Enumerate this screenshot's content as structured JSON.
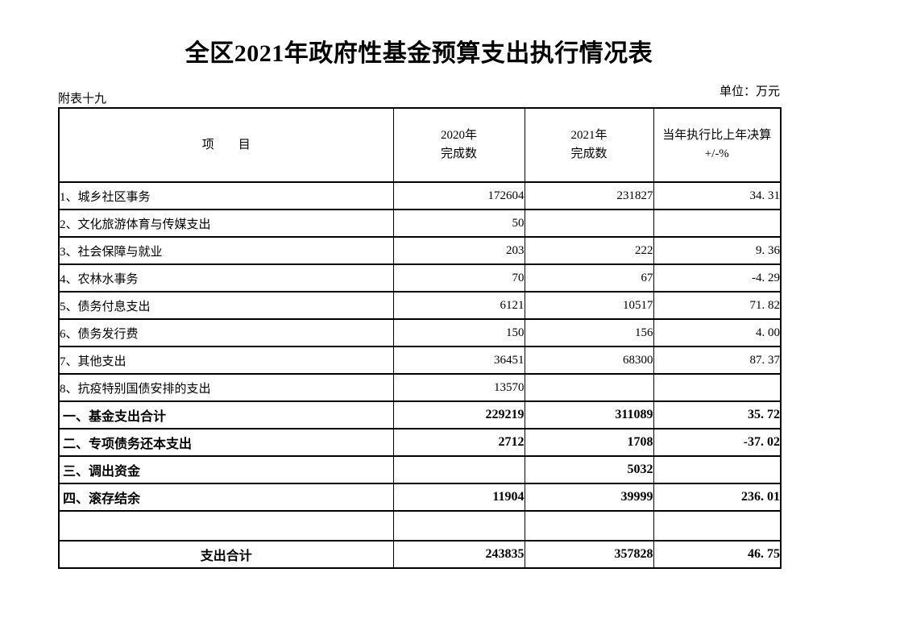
{
  "page": {
    "title": "全区2021年政府性基金预算支出执行情况表",
    "note_left": "附表十九",
    "unit_label": "单位：万元"
  },
  "table": {
    "header": {
      "item": "项　　目",
      "col_2020": [
        "2020年",
        "完成数"
      ],
      "col_2021": [
        "2021年",
        "完成数"
      ],
      "col_pct": [
        "当年执行比上年决算",
        "+/-%"
      ]
    },
    "rows": [
      {
        "style": "item",
        "label": "1、城乡社区事务",
        "v2020": "172604",
        "v2021": "231827",
        "pct": "34. 31"
      },
      {
        "style": "item",
        "label": "2、文化旅游体育与传媒支出",
        "v2020": "50",
        "v2021": "",
        "pct": ""
      },
      {
        "style": "item",
        "label": "3、社会保障与就业",
        "v2020": "203",
        "v2021": "222",
        "pct": "9. 36"
      },
      {
        "style": "item",
        "label": "4、农林水事务",
        "v2020": "70",
        "v2021": "67",
        "pct": "-4. 29"
      },
      {
        "style": "item",
        "label": "5、债务付息支出",
        "v2020": "6121",
        "v2021": "10517",
        "pct": "71. 82"
      },
      {
        "style": "item",
        "label": "6、债务发行费",
        "v2020": "150",
        "v2021": "156",
        "pct": "4. 00"
      },
      {
        "style": "item",
        "label": "7、其他支出",
        "v2020": "36451",
        "v2021": "68300",
        "pct": "87. 37"
      },
      {
        "style": "item",
        "label": "8、抗疫特别国债安排的支出",
        "v2020": "13570",
        "v2021": "",
        "pct": ""
      },
      {
        "style": "section",
        "label": "一、基金支出合计",
        "v2020": "229219",
        "v2021": "311089",
        "pct": "35. 72"
      },
      {
        "style": "section",
        "label": "二、专项债务还本支出",
        "v2020": "2712",
        "v2021": "1708",
        "pct": "-37. 02"
      },
      {
        "style": "section",
        "label": "三、调出资金",
        "v2020": "",
        "v2021": "5032",
        "pct": ""
      },
      {
        "style": "section",
        "label": "四、滚存结余",
        "v2020": "11904",
        "v2021": "39999",
        "pct": "236. 01"
      },
      {
        "style": "blank",
        "label": "",
        "v2020": "",
        "v2021": "",
        "pct": ""
      },
      {
        "style": "total",
        "label": "支出合计",
        "v2020": "243835",
        "v2021": "357828",
        "pct": "46. 75"
      }
    ]
  }
}
